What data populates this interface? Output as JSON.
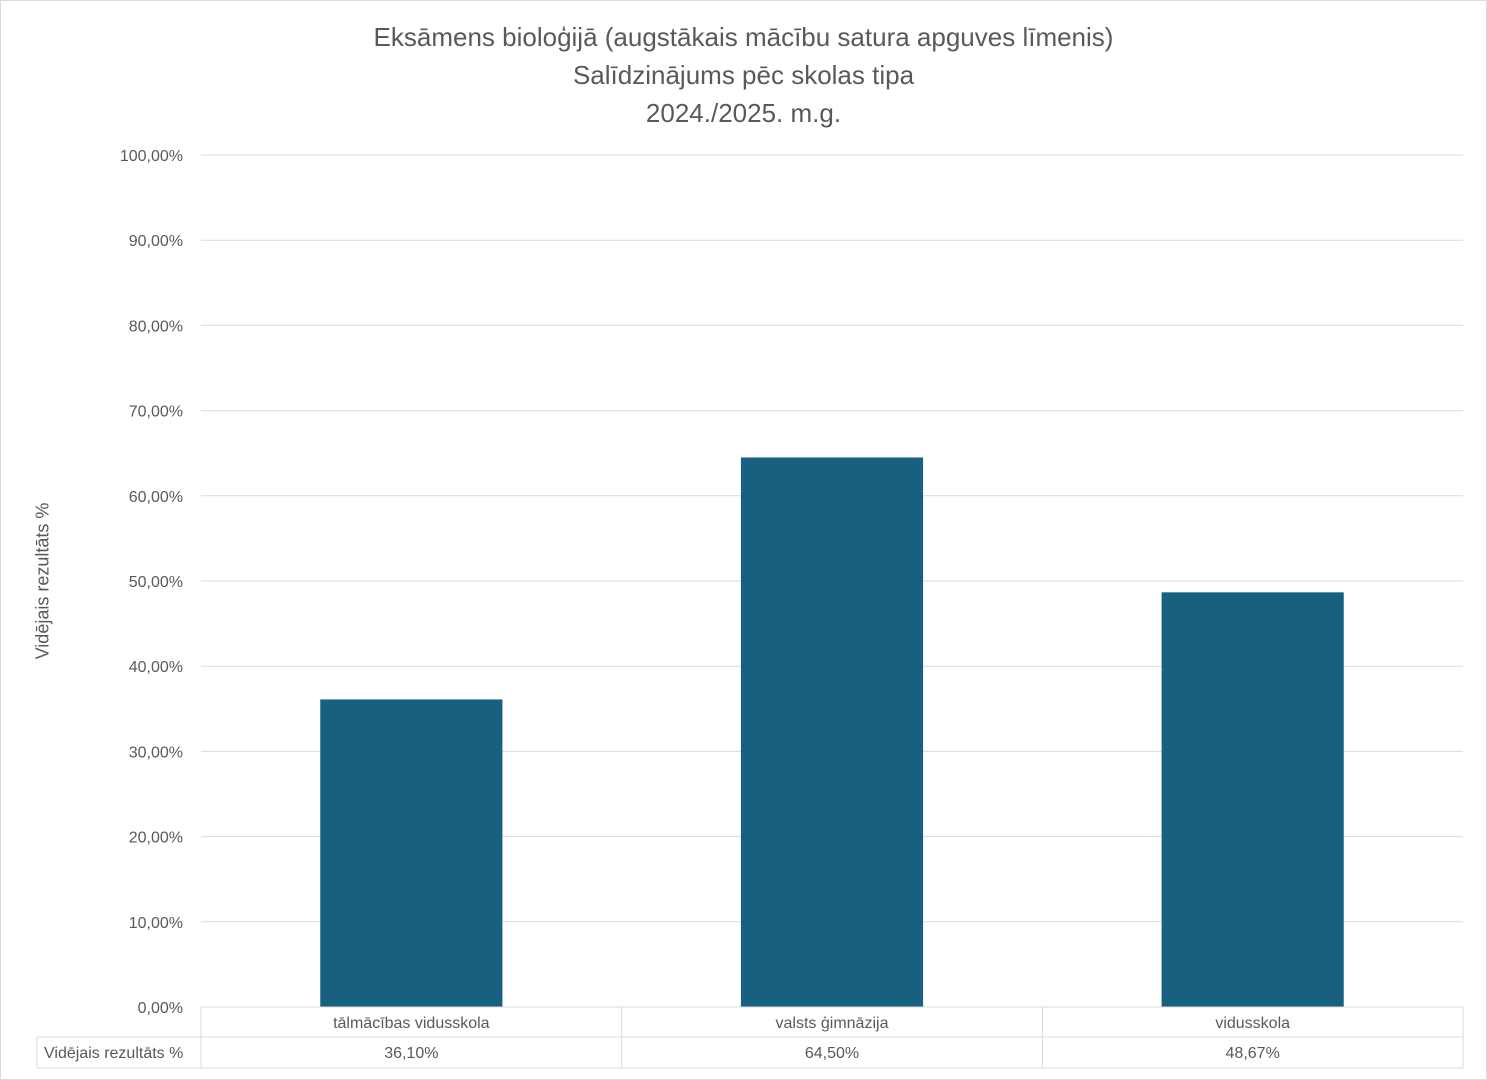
{
  "chart_data": {
    "type": "bar",
    "title": "Eksāmens bioloģijā (augstākais mācību satura apguves līmenis)",
    "subtitle_lines": [
      "Salīdzinājums pēc skolas tipa",
      "2024./2025. m.g."
    ],
    "ylabel": "Vidējais rezultāts %",
    "ylim": [
      0,
      100
    ],
    "y_ticks": [
      0,
      10,
      20,
      30,
      40,
      50,
      60,
      70,
      80,
      90,
      100
    ],
    "y_tick_labels": [
      "0,00%",
      "10,00%",
      "20,00%",
      "30,00%",
      "40,00%",
      "50,00%",
      "60,00%",
      "70,00%",
      "80,00%",
      "90,00%",
      "100,00%"
    ],
    "categories": [
      "tālmācības vidusskola",
      "valsts ģimnāzija",
      "vidusskola"
    ],
    "series": [
      {
        "name": "Vidējais rezultāts %",
        "values": [
          36.1,
          64.5,
          48.67
        ],
        "value_labels": [
          "36,10%",
          "64,50%",
          "48,67%"
        ],
        "color": "#17607f"
      }
    ],
    "grid": true,
    "legend": "none",
    "data_table": true
  }
}
